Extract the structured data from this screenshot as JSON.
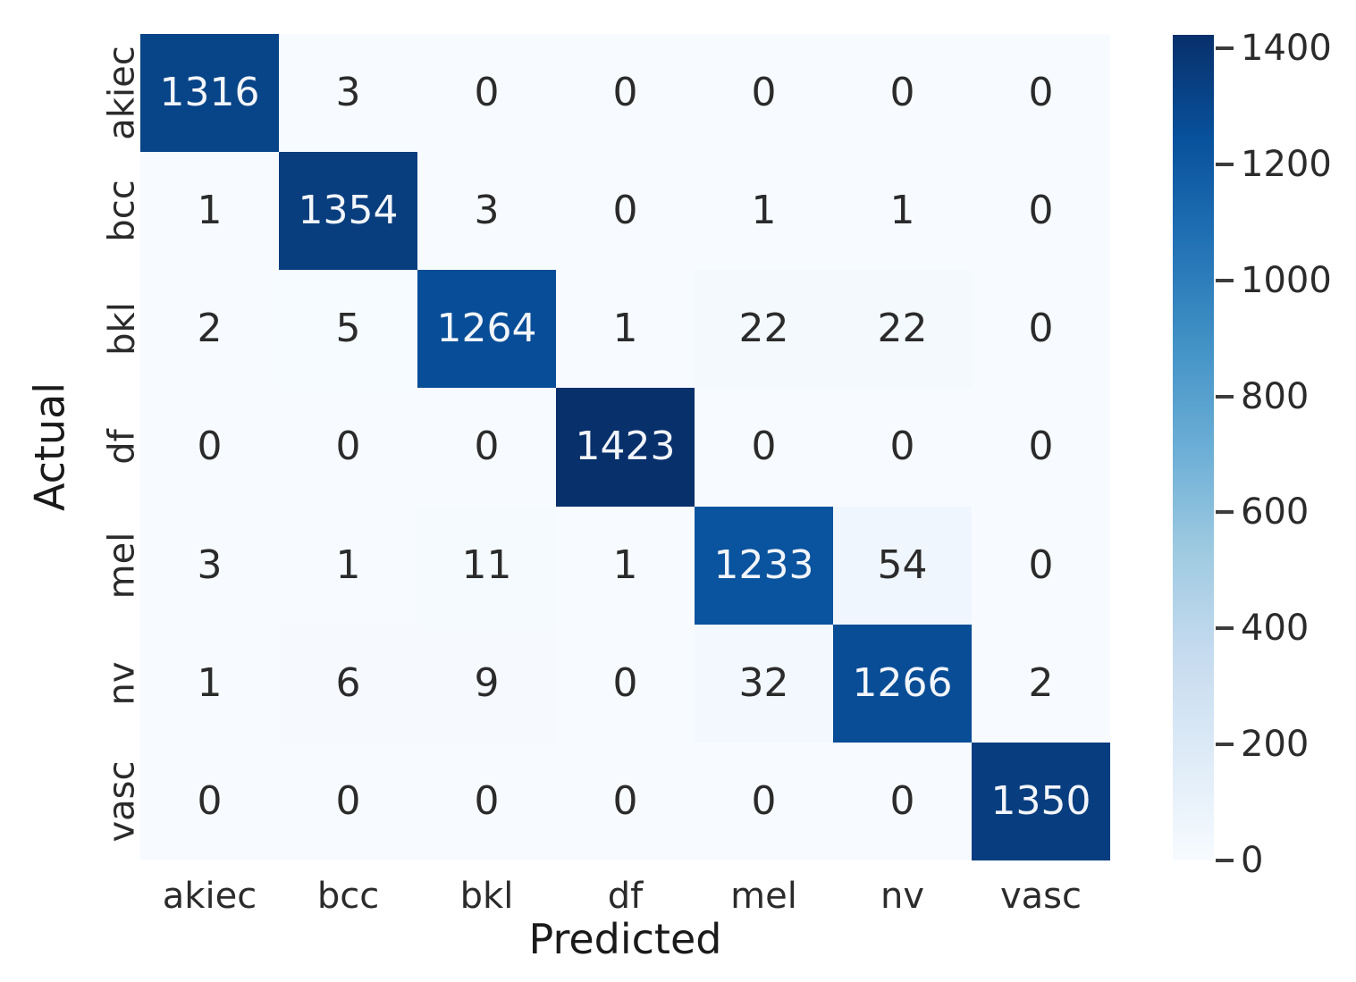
{
  "chart_data": {
    "type": "heatmap",
    "title": "",
    "xlabel": "Predicted",
    "ylabel": "Actual",
    "x_categories": [
      "akiec",
      "bcc",
      "bkl",
      "df",
      "mel",
      "nv",
      "vasc"
    ],
    "y_categories": [
      "akiec",
      "bcc",
      "bkl",
      "df",
      "mel",
      "nv",
      "vasc"
    ],
    "matrix": [
      [
        1316,
        3,
        0,
        0,
        0,
        0,
        0
      ],
      [
        1,
        1354,
        3,
        0,
        1,
        1,
        0
      ],
      [
        2,
        5,
        1264,
        1,
        22,
        22,
        0
      ],
      [
        0,
        0,
        0,
        1423,
        0,
        0,
        0
      ],
      [
        3,
        1,
        11,
        1,
        1233,
        54,
        0
      ],
      [
        1,
        6,
        9,
        0,
        32,
        1266,
        2
      ],
      [
        0,
        0,
        0,
        0,
        0,
        0,
        1350
      ]
    ],
    "vmin": 0,
    "vmax": 1423,
    "colormap": "Blues",
    "colormap_anchors": [
      "#f7fbff",
      "#deebf7",
      "#c6dbef",
      "#9ecae1",
      "#6baed6",
      "#4292c6",
      "#2171b5",
      "#08519c",
      "#08306b"
    ],
    "colorbar_ticks": [
      1400,
      1200,
      1000,
      800,
      600,
      400,
      200,
      0
    ],
    "colorbar_position": "right",
    "grid": false,
    "colors": {
      "background": "#ffffff",
      "annotation_on_dark": "#f2f5fa",
      "annotation_on_light": "#2b2b2b",
      "tick_label": "#2b2b2b",
      "axis_label": "#1a1a1a",
      "colorbar_dash": "#3c3c3c"
    }
  }
}
